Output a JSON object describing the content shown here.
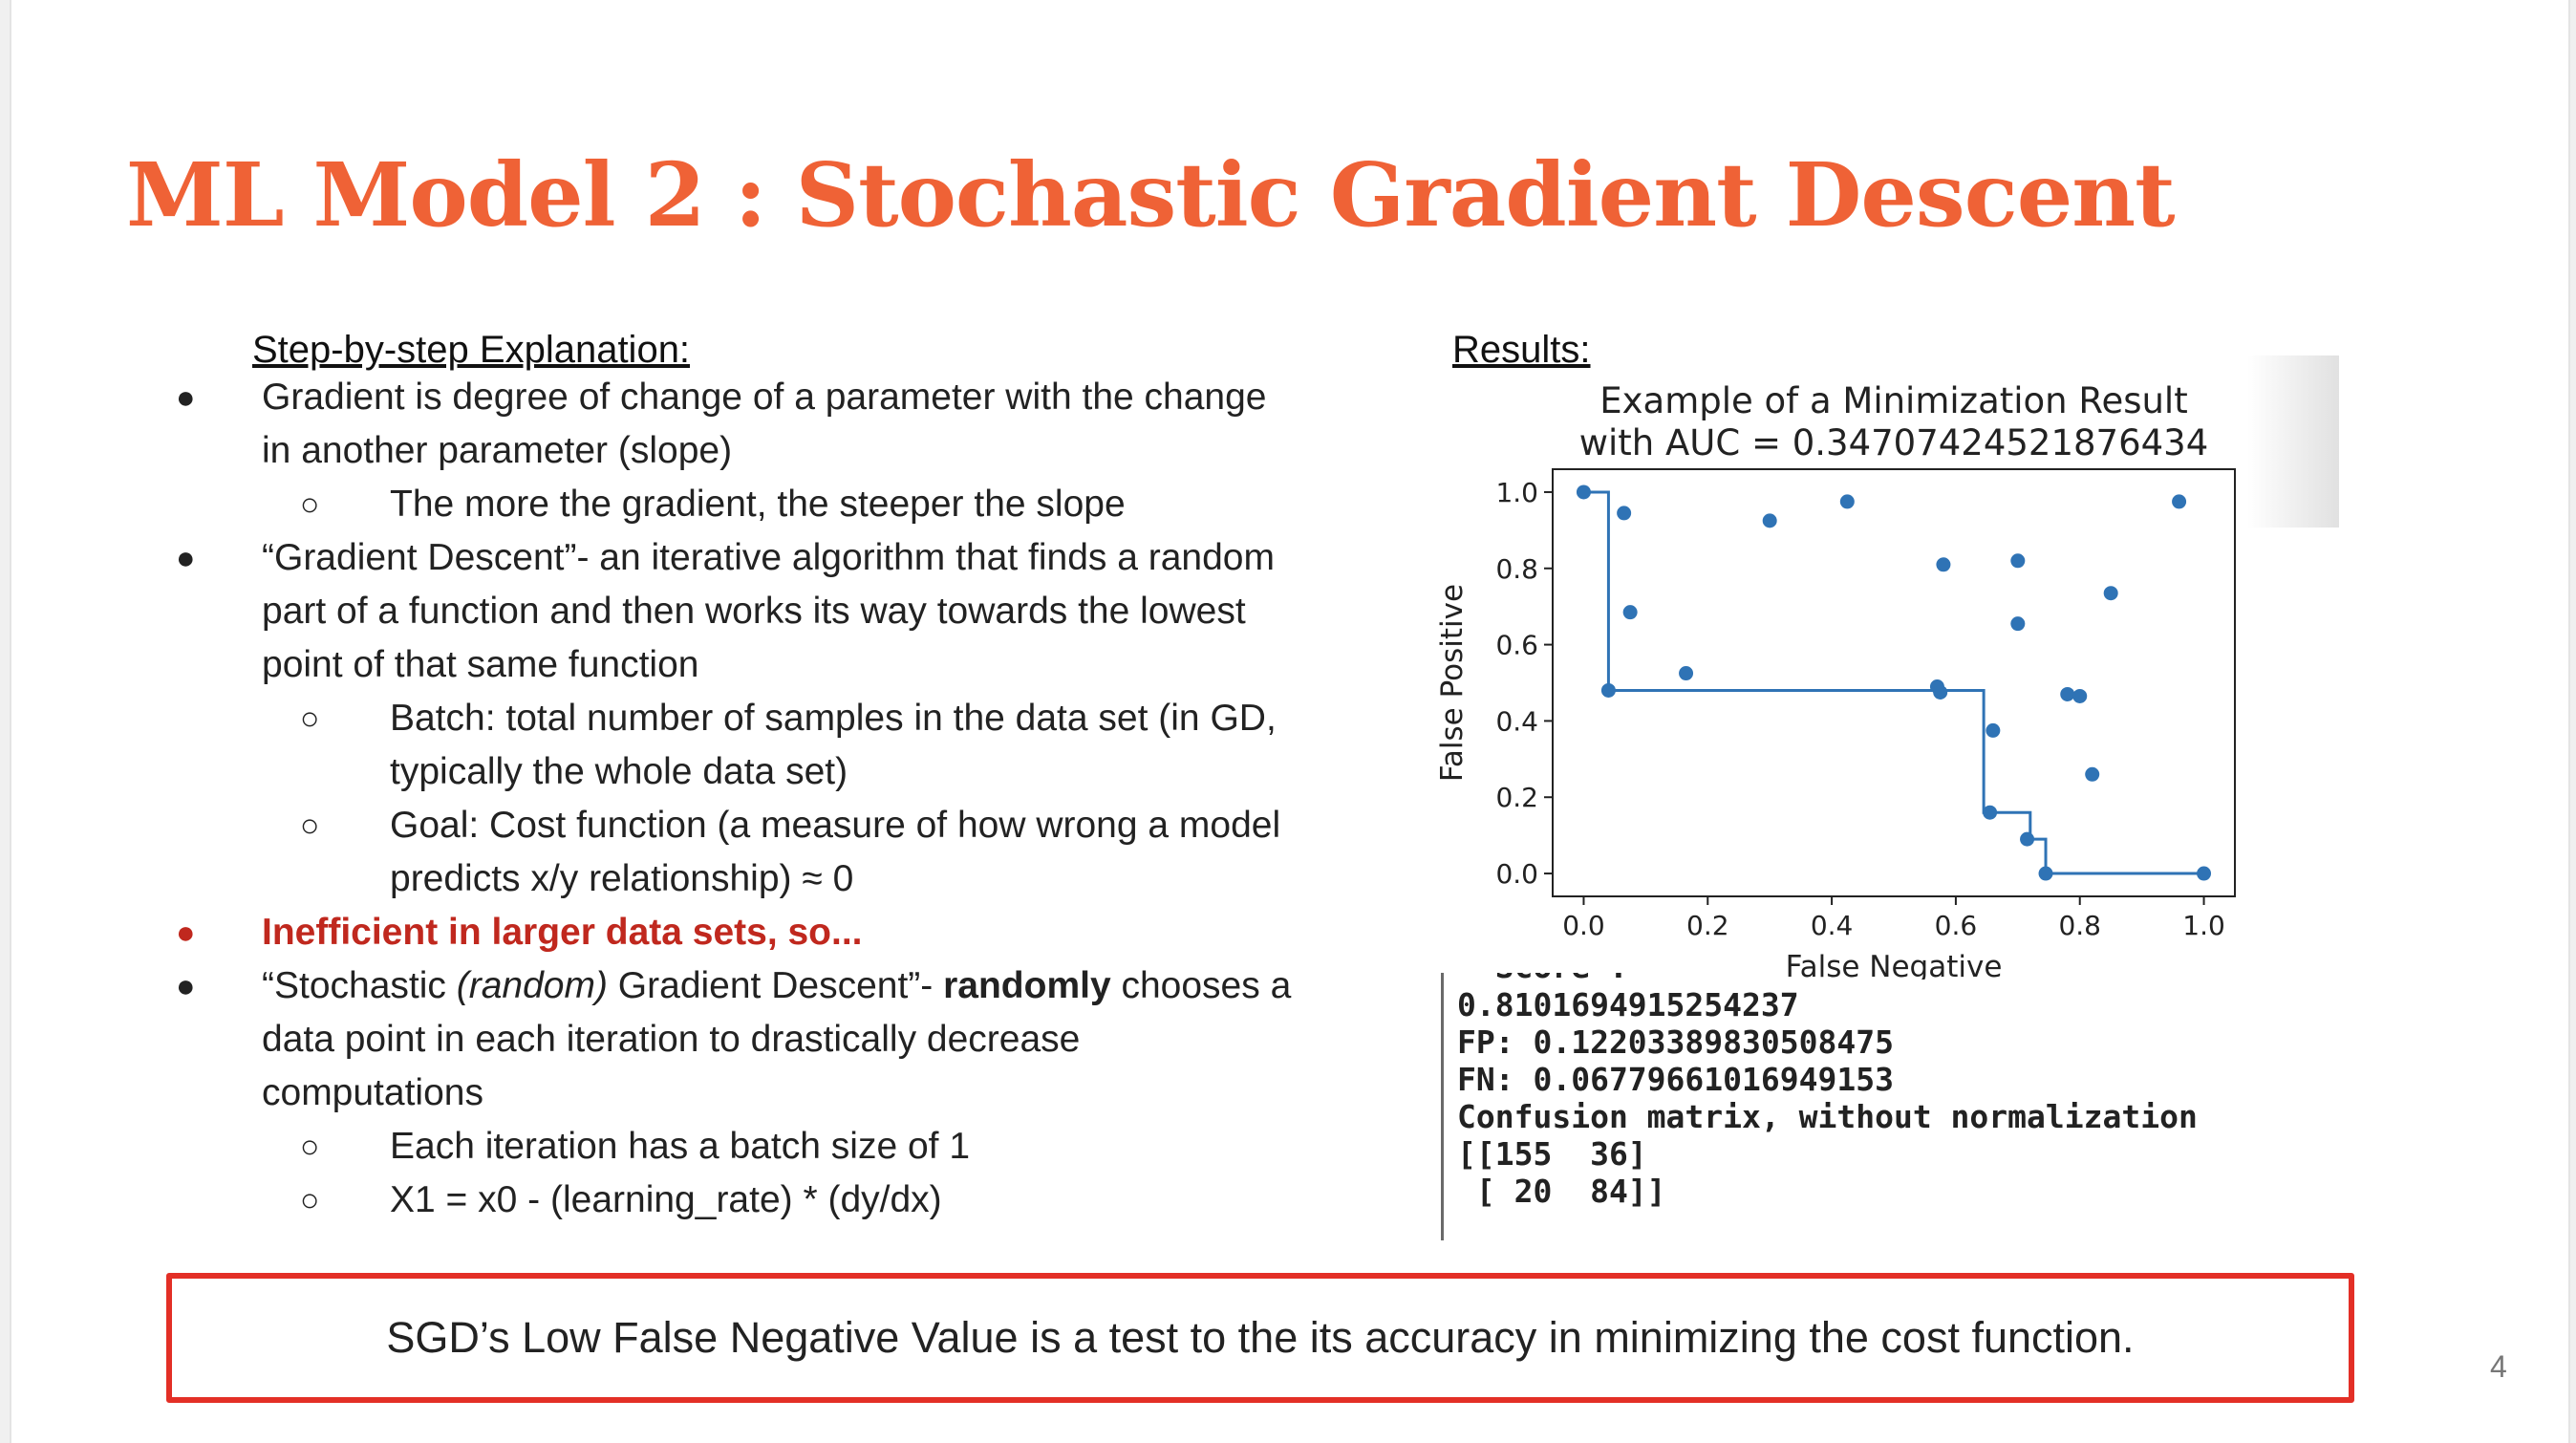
{
  "slide": {
    "title": "ML Model 2 : Stochastic Gradient Descent",
    "left_heading": "Step-by-step Explanation:",
    "right_heading": "Results:",
    "page_number": "4"
  },
  "bullets": [
    {
      "level": 1,
      "marker": "●",
      "segments": [
        {
          "text": "Gradient is degree of change of a parameter with the change"
        }
      ]
    },
    {
      "level": 1,
      "marker": "",
      "segments": [
        {
          "text": "in another parameter (slope)"
        }
      ]
    },
    {
      "level": 2,
      "marker": "○",
      "segments": [
        {
          "text": "The more the gradient, the steeper the slope"
        }
      ]
    },
    {
      "level": 1,
      "marker": "●",
      "segments": [
        {
          "text": "“Gradient Descent”- an iterative algorithm that finds a random"
        }
      ]
    },
    {
      "level": 1,
      "marker": "",
      "segments": [
        {
          "text": "part of a function and then works its way towards the lowest"
        }
      ]
    },
    {
      "level": 1,
      "marker": "",
      "segments": [
        {
          "text": "point of that same function"
        }
      ]
    },
    {
      "level": 2,
      "marker": "○",
      "segments": [
        {
          "text": "Batch: total number of samples in the data set (in GD,"
        }
      ]
    },
    {
      "level": 2,
      "marker": "",
      "segments": [
        {
          "text": "typically the whole data set)"
        }
      ]
    },
    {
      "level": 2,
      "marker": "○",
      "segments": [
        {
          "text": "Goal: Cost function (a measure of how wrong a model"
        }
      ]
    },
    {
      "level": 2,
      "marker": "",
      "segments": [
        {
          "text": "predicts x/y relationship) ≈ 0"
        }
      ]
    },
    {
      "level": 1,
      "marker": "●",
      "highlight": true,
      "segments": [
        {
          "text": "Inefficient in larger data sets, so..."
        }
      ]
    },
    {
      "level": 1,
      "marker": "●",
      "segments": [
        {
          "text": "“Stochastic "
        },
        {
          "text": "(random)",
          "style": "italic"
        },
        {
          "text": " Gradient Descent”- "
        },
        {
          "text": "randomly",
          "style": "bold"
        },
        {
          "text": " chooses a"
        }
      ]
    },
    {
      "level": 1,
      "marker": "",
      "segments": [
        {
          "text": "data point in each iteration to drastically decrease"
        }
      ]
    },
    {
      "level": 1,
      "marker": "",
      "segments": [
        {
          "text": "computations"
        }
      ]
    },
    {
      "level": 2,
      "marker": "○",
      "segments": [
        {
          "text": "Each iteration has a batch size of 1"
        }
      ]
    },
    {
      "level": 2,
      "marker": "○",
      "segments": [
        {
          "text": "X1 = x0 - (learning_rate) * (dy/dx)"
        }
      ]
    }
  ],
  "chart_data": {
    "type": "scatter",
    "title_lines": [
      "Example of a Minimization Result",
      "with AUC = 0.34707424521876434"
    ],
    "xlabel": "False Negative",
    "ylabel": "False Positive",
    "xlim": [
      -0.05,
      1.05
    ],
    "ylim": [
      -0.06,
      1.06
    ],
    "xticks": [
      "0.0",
      "0.2",
      "0.4",
      "0.6",
      "0.8",
      "1.0"
    ],
    "yticks": [
      "0.0",
      "0.2",
      "0.4",
      "0.6",
      "0.8",
      "1.0"
    ],
    "grid": false,
    "point_color": "#2f73b5",
    "points": [
      [
        0.0,
        1.0
      ],
      [
        0.065,
        0.945
      ],
      [
        0.075,
        0.685
      ],
      [
        0.04,
        0.48
      ],
      [
        0.165,
        0.525
      ],
      [
        0.3,
        0.925
      ],
      [
        0.425,
        0.975
      ],
      [
        0.57,
        0.49
      ],
      [
        0.575,
        0.475
      ],
      [
        0.58,
        0.81
      ],
      [
        0.66,
        0.375
      ],
      [
        0.7,
        0.82
      ],
      [
        0.7,
        0.655
      ],
      [
        0.78,
        0.47
      ],
      [
        0.8,
        0.465
      ],
      [
        0.82,
        0.26
      ],
      [
        0.85,
        0.735
      ],
      [
        0.96,
        0.975
      ],
      [
        0.655,
        0.16
      ],
      [
        0.715,
        0.09
      ],
      [
        0.745,
        0.0
      ],
      [
        1.0,
        0.0
      ]
    ],
    "step_line": [
      [
        0.0,
        1.0
      ],
      [
        0.04,
        1.0
      ],
      [
        0.04,
        0.48
      ],
      [
        0.645,
        0.48
      ],
      [
        0.645,
        0.16
      ],
      [
        0.72,
        0.16
      ],
      [
        0.72,
        0.09
      ],
      [
        0.745,
        0.09
      ],
      [
        0.745,
        0.0
      ],
      [
        1.0,
        0.0
      ]
    ]
  },
  "console": {
    "partial_line": "  Score :",
    "lines": [
      "0.8101694915254237",
      "FP: 0.12203389830508475",
      "FN: 0.06779661016949153",
      "Confusion matrix, without normalization",
      "[[155  36]",
      " [ 20  84]]"
    ]
  },
  "callout": {
    "text": "SGD’s Low False Negative Value is a test to the its accuracy in minimizing the cost function.",
    "border_color": "#e32f26"
  },
  "colors": {
    "title": "#ef6236",
    "highlight": "#c0281e"
  }
}
